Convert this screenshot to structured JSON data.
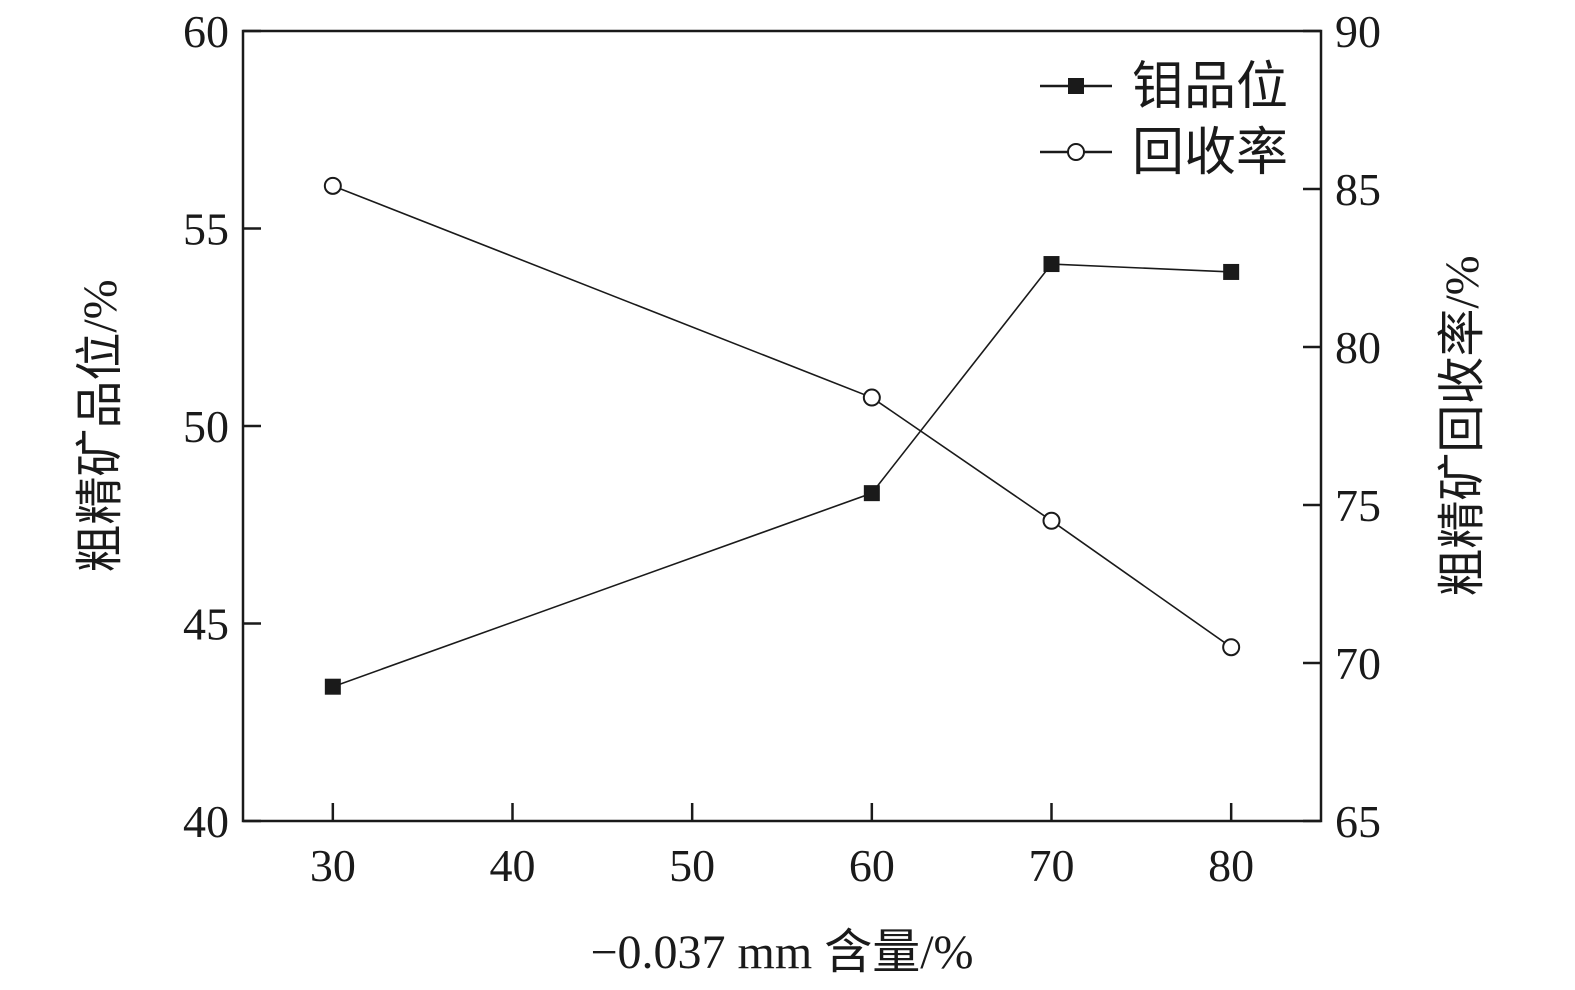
{
  "chart_data": {
    "type": "line",
    "x": [
      30,
      60,
      70,
      80
    ],
    "xlim": [
      25,
      85
    ],
    "xticks": [
      30,
      40,
      50,
      60,
      70,
      80
    ],
    "xlabel": "−0.037 mm 含量/%",
    "ylabel_left": "粗精矿品位/%",
    "ylabel_right": "粗精矿回收率/%",
    "ylim_left": [
      40,
      60
    ],
    "yticks_left": [
      40,
      45,
      50,
      55,
      60
    ],
    "ylim_right": [
      65,
      90
    ],
    "yticks_right": [
      65,
      70,
      75,
      80,
      85,
      90
    ],
    "grid": false,
    "legend_position": "top-right",
    "series": [
      {
        "name": "钼品位",
        "axis": "left",
        "marker": "filled-square",
        "values": [
          43.4,
          48.3,
          54.1,
          53.9
        ]
      },
      {
        "name": "回收率",
        "axis": "right",
        "marker": "open-circle",
        "values": [
          85.1,
          78.4,
          74.5,
          70.5
        ]
      }
    ],
    "colors": {
      "line": "#1a1a1a",
      "background": "#ffffff"
    }
  }
}
